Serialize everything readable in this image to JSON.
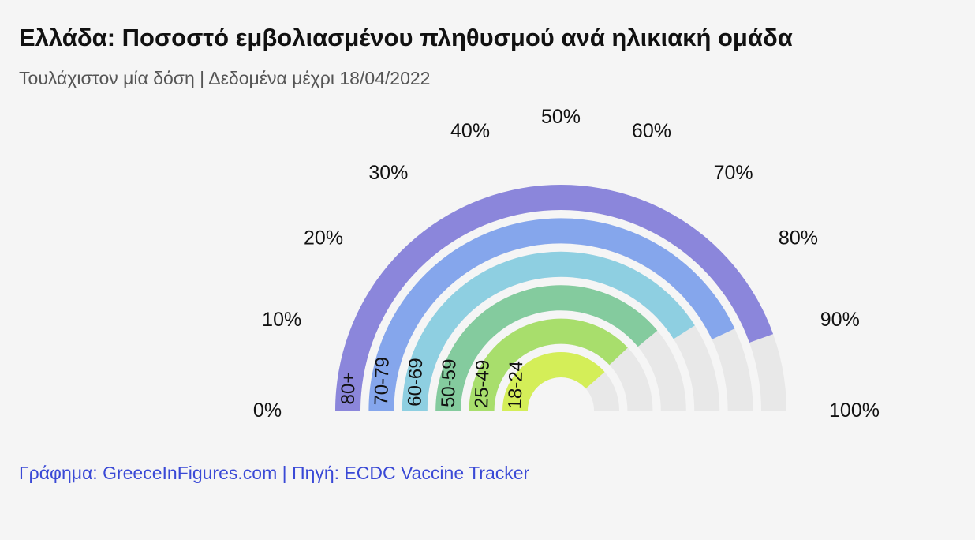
{
  "header": {
    "title": "Ελλάδα: Ποσοστό εμβολιασμένου πληθυσμού ανά ηλικιακή ομάδα",
    "subtitle": "Τουλάχιστον μία δόση | Δεδομένα μέχρι 18/04/2022"
  },
  "footer": {
    "credit": "Γράφημα: GreeceInFigures.com | Πηγή: ECDC Vaccine Tracker"
  },
  "chart_data": {
    "type": "radial-bar",
    "title": "Ελλάδα: Ποσοστό εμβολιασμένου πληθυσμού ανά ηλικιακή ομάδα",
    "subtitle": "Τουλάχιστον μία δόση | Δεδομένα μέχρι 18/04/2022",
    "value_axis": {
      "min": 0,
      "max": 100,
      "ticks": [
        0,
        10,
        20,
        30,
        40,
        50,
        60,
        70,
        80,
        90,
        100
      ],
      "tick_labels": [
        "0%",
        "10%",
        "20%",
        "30%",
        "40%",
        "50%",
        "60%",
        "70%",
        "80%",
        "90%",
        "100%"
      ]
    },
    "background_track_color": "#e8e8e8",
    "categories": [
      "80+",
      "70-79",
      "60-69",
      "50-59",
      "25-49",
      "18-24"
    ],
    "values": [
      89,
      86,
      82,
      78,
      76,
      77
    ],
    "colors": [
      "#8b86db",
      "#85a6ec",
      "#8ecfe1",
      "#84cb9e",
      "#a8de6c",
      "#d4ee58"
    ]
  }
}
